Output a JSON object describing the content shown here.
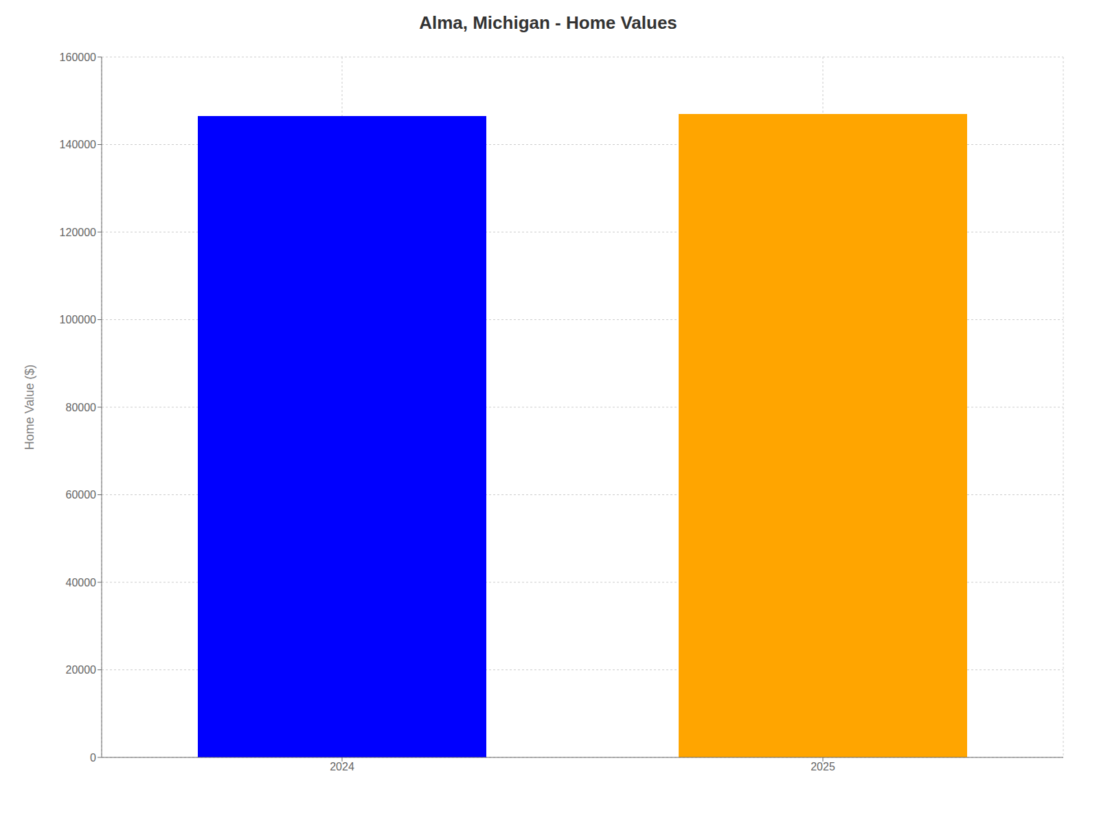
{
  "chart_data": {
    "type": "bar",
    "title": "Alma, Michigan - Home Values",
    "categories": [
      "2024",
      "2025"
    ],
    "values": [
      146500,
      147000
    ],
    "colors": [
      "#0000ff",
      "#ffa500"
    ],
    "ylabel": "Home Value ($)",
    "ylim": [
      0,
      160000
    ],
    "yticks": [
      0,
      20000,
      40000,
      60000,
      80000,
      100000,
      120000,
      140000,
      160000
    ],
    "grid": true
  }
}
